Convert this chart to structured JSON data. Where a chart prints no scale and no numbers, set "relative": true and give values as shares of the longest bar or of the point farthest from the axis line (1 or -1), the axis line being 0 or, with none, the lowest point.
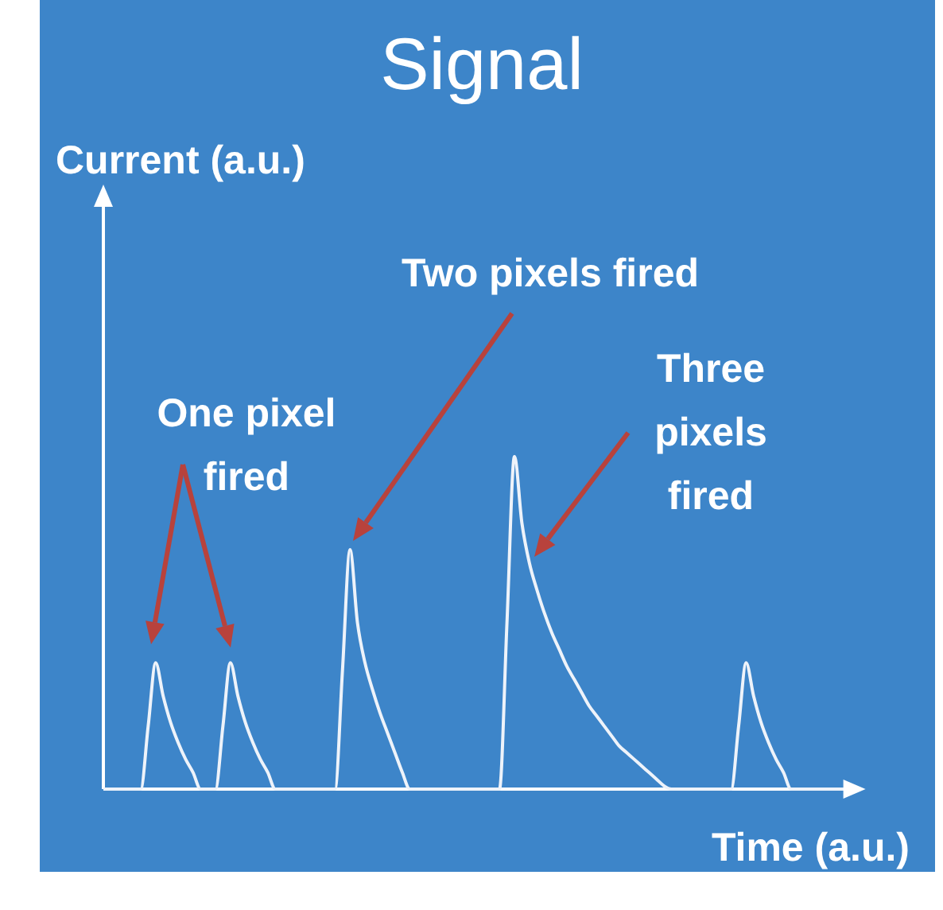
{
  "chart_data": {
    "type": "line",
    "title": "Signal",
    "xlabel": "Time (a.u.)",
    "relative": true,
    "categories": [
      null,
      null,
      null,
      null,
      null,
      null,
      null,
      null,
      null,
      null,
      null,
      null,
      null,
      null,
      null,
      null,
      null,
      null,
      null,
      null,
      null,
      null,
      null,
      null,
      null,
      null,
      null,
      null,
      null,
      null,
      null,
      null,
      null,
      null,
      null,
      null,
      null,
      null,
      null,
      null,
      null,
      null,
      null,
      null,
      null,
      null,
      null,
      null,
      null,
      null,
      null,
      null,
      null,
      null,
      null,
      null,
      null,
      null,
      null,
      null,
      null,
      null,
      null,
      null,
      null,
      null,
      null,
      null,
      null,
      null,
      null,
      null,
      null,
      null,
      null,
      null,
      null,
      null,
      null,
      null,
      null,
      null,
      null,
      null,
      null,
      null,
      null,
      null,
      null,
      null,
      null,
      null,
      null,
      null,
      null,
      null,
      null,
      null,
      null,
      null
    ],
    "series": [
      {
        "color": "#eef3fa",
        "values": [
          0,
          0,
          0,
          0,
          0,
          0,
          0.19,
          0.38,
          0.28,
          0.2,
          0.14,
          0.09,
          0.05,
          0,
          0,
          0,
          0.19,
          0.38,
          0.28,
          0.2,
          0.14,
          0.09,
          0.05,
          0,
          0,
          0,
          0,
          0,
          0,
          0,
          0,
          0,
          0.36,
          0.72,
          0.5,
          0.38,
          0.3,
          0.23,
          0.17,
          0.11,
          0.05,
          0,
          0,
          0,
          0,
          0,
          0,
          0,
          0,
          0,
          0,
          0,
          0,
          0,
          0.5,
          1,
          0.8,
          0.68,
          0.6,
          0.53,
          0.47,
          0.42,
          0.37,
          0.33,
          0.29,
          0.25,
          0.22,
          0.19,
          0.16,
          0.13,
          0.11,
          0.09,
          0.07,
          0.05,
          0.03,
          0.01,
          0,
          0,
          0,
          0,
          0,
          0,
          0,
          0,
          0,
          0.19,
          0.38,
          0.28,
          0.2,
          0.14,
          0.09,
          0.05,
          0,
          0,
          0,
          0,
          0,
          0,
          0,
          0
        ]
      }
    ],
    "annotations": [
      "Current (a.u.)",
      "One pixel fired",
      "Two pixels fired",
      "Three pixels fired"
    ]
  }
}
